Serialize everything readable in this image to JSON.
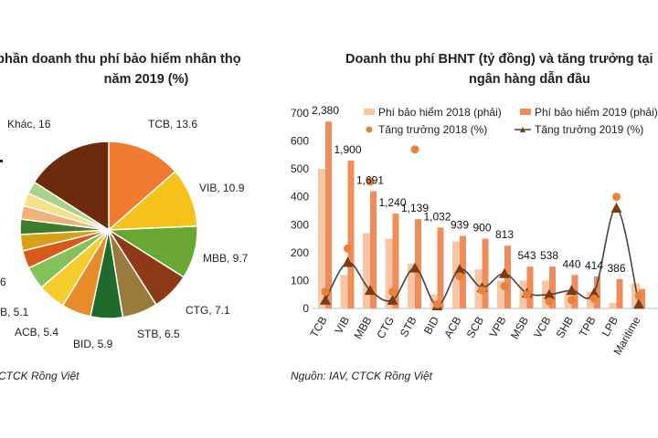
{
  "chart_data": [
    {
      "type": "pie",
      "title_line1": "Thị phần doanh thu phí bảo hiểm nhân thọ",
      "title_line2": "năm 2019 (%)",
      "slices": [
        {
          "label": "TCB",
          "value": 13.6,
          "color": "#f07a2f"
        },
        {
          "label": "VIB",
          "value": 10.9,
          "color": "#f5c21b"
        },
        {
          "label": "MBB",
          "value": 9.7,
          "color": "#6aa632"
        },
        {
          "label": "CTG",
          "value": 7.1,
          "color": "#8b3a15"
        },
        {
          "label": "STB",
          "value": 6.5,
          "color": "#9a7b3c"
        },
        {
          "label": "BID",
          "value": 5.9,
          "color": "#1e6b2c"
        },
        {
          "label": "ACB",
          "value": 5.4,
          "color": "#e88c2a"
        },
        {
          "label": "",
          "value": 5.1,
          "color": "#f5cc2a"
        },
        {
          "label": "",
          "value": 4.2,
          "color": "#84c15a"
        },
        {
          "label": "",
          "value": 3.3,
          "color": "#d65a1a"
        },
        {
          "label": "",
          "value": 3.0,
          "color": "#d7a017"
        },
        {
          "label": "",
          "value": 2.8,
          "color": "#3d7d2a"
        },
        {
          "label": "",
          "value": 2.5,
          "color": "#f2b07a"
        },
        {
          "label": "",
          "value": 2.4,
          "color": "#f7e08a"
        },
        {
          "label": "",
          "value": 2.3,
          "color": "#a9d38a"
        },
        {
          "label": "Khác",
          "value": 16,
          "color": "#6e2a0c"
        }
      ],
      "visible_labels": [
        {
          "text": "TCB, 13.6"
        },
        {
          "text": "VIB, 10.9"
        },
        {
          "text": "MBB, 9.7"
        },
        {
          "text": "CTG, 7.1"
        },
        {
          "text": "STB, 6.5"
        },
        {
          "text": "BID, 5.9"
        },
        {
          "text": "ACB, 5.4"
        },
        {
          "text": "B, 5.1"
        },
        {
          "text": "6"
        },
        {
          "text": "Khác, 16"
        }
      ],
      "source": "CTCK Rồng Việt"
    },
    {
      "type": "bar",
      "title_line1": "Doanh thu phí BHNT (tỷ đồng) và tăng trưởng tại",
      "title_line2": "ngân hàng dẫn đầu",
      "categories": [
        "TCB",
        "VIB",
        "MBB",
        "CTG",
        "STB",
        "BID",
        "ACB",
        "SCB",
        "VPB",
        "MSB",
        "VCB",
        "SHB",
        "TPB",
        "LPB",
        "Maritime"
      ],
      "ylim": [
        0,
        700
      ],
      "yticks": [
        0,
        100,
        200,
        300,
        400,
        500,
        600,
        700
      ],
      "series": [
        {
          "name": "Phí bảo hiểm 2018 (phải)",
          "kind": "bar",
          "color": "#f7c6a6",
          "values": [
            500,
            120,
            270,
            250,
            160,
            50,
            240,
            140,
            100,
            100,
            100,
            60,
            60,
            20,
            90
          ]
        },
        {
          "name": "Phí bảo hiểm 2019 (phải)",
          "kind": "bar",
          "color": "#ef8c5a",
          "values": [
            670,
            530,
            420,
            340,
            320,
            290,
            260,
            250,
            225,
            150,
            150,
            120,
            115,
            105,
            70
          ]
        },
        {
          "name": "Tăng trưởng 2018 (%)",
          "kind": "dots",
          "color": "#e8843a",
          "values": [
            60,
            215,
            455,
            60,
            570,
            15,
            115,
            65,
            80,
            50,
            25,
            30,
            35,
            400,
            45
          ]
        },
        {
          "name": "Tăng trưởng 2019 (%)",
          "kind": "line",
          "color": "#444444",
          "values": [
            30,
            165,
            65,
            30,
            145,
            10,
            140,
            75,
            125,
            55,
            50,
            65,
            55,
            360,
            15
          ]
        }
      ],
      "data_labels": [
        "2,380",
        "1,900",
        "1,691",
        "1,240",
        "1,139",
        "1,032",
        "939",
        "900",
        "813",
        "543",
        "538",
        "440",
        "414",
        "386",
        ""
      ],
      "source": "Nguồn: IAV, CTCK Rồng Việt"
    }
  ]
}
